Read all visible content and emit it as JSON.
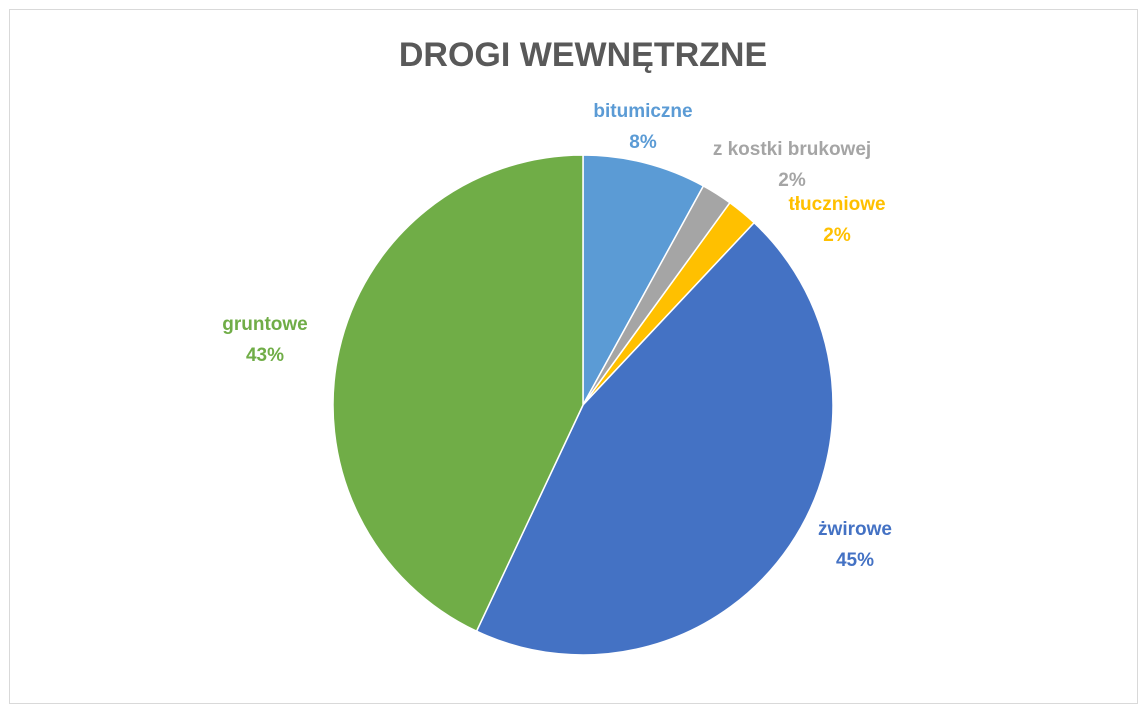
{
  "chart_data": {
    "type": "pie",
    "title": "DROGI WEWNĘTRZNE",
    "categories": [
      "bitumiczne",
      "z kostki brukowej",
      "tłuczniowe",
      "żwirowe",
      "gruntowe"
    ],
    "values": [
      8,
      2,
      2,
      45,
      43
    ],
    "value_labels": [
      "8%",
      "2%",
      "2%",
      "45%",
      "43%"
    ],
    "colors": [
      "#5b9bd5",
      "#a5a5a5",
      "#ffc000",
      "#4472c4",
      "#70ad47"
    ]
  }
}
